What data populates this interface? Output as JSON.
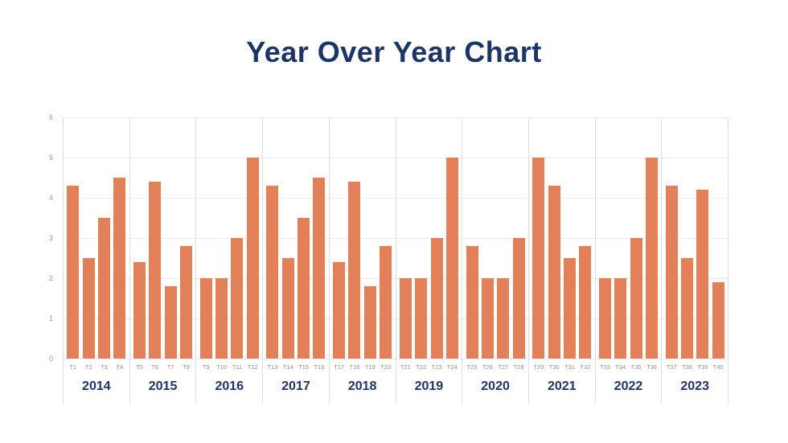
{
  "title": "Year Over Year Chart",
  "colors": {
    "bar": "#e2805a",
    "navy": "#1d3565",
    "gridline": "#ececec",
    "separator": "#e0e0e0",
    "tick_text": "#9a9a9a",
    "bar_label_text": "#8f8f8f",
    "background": "#ffffff"
  },
  "chart_data": {
    "type": "bar",
    "title": "Year Over Year Chart",
    "xlabel": "",
    "ylabel": "",
    "ylim": [
      0,
      6
    ],
    "yticks": [
      0,
      1,
      2,
      3,
      4,
      5,
      6
    ],
    "grid": true,
    "legend": "none",
    "groups": [
      {
        "year": "2014",
        "categories": [
          "T1",
          "T2",
          "T3",
          "T4"
        ],
        "values": [
          4.3,
          2.5,
          3.5,
          4.5
        ]
      },
      {
        "year": "2015",
        "categories": [
          "T5",
          "T6",
          "T7",
          "T8"
        ],
        "values": [
          2.4,
          4.4,
          1.8,
          2.8
        ]
      },
      {
        "year": "2016",
        "categories": [
          "T9",
          "T10",
          "T11",
          "T12"
        ],
        "values": [
          2.0,
          2.0,
          3.0,
          5.0
        ]
      },
      {
        "year": "2017",
        "categories": [
          "T13",
          "T14",
          "T15",
          "T16"
        ],
        "values": [
          4.3,
          2.5,
          3.5,
          4.5
        ]
      },
      {
        "year": "2018",
        "categories": [
          "T17",
          "T18",
          "T19",
          "T20"
        ],
        "values": [
          2.4,
          4.4,
          1.8,
          2.8
        ]
      },
      {
        "year": "2019",
        "categories": [
          "T21",
          "T22",
          "T23",
          "T24"
        ],
        "values": [
          2.0,
          2.0,
          3.0,
          5.0
        ]
      },
      {
        "year": "2020",
        "categories": [
          "T25",
          "T26",
          "T27",
          "T28"
        ],
        "values": [
          2.8,
          2.0,
          2.0,
          3.0
        ]
      },
      {
        "year": "2021",
        "categories": [
          "T29",
          "T30",
          "T31",
          "T32"
        ],
        "values": [
          5.0,
          4.3,
          2.5,
          2.8
        ]
      },
      {
        "year": "2022",
        "categories": [
          "T33",
          "T34",
          "T35",
          "T36"
        ],
        "values": [
          2.0,
          2.0,
          3.0,
          5.0
        ]
      },
      {
        "year": "2023",
        "categories": [
          "T37",
          "T38",
          "T39",
          "T40"
        ],
        "values": [
          4.3,
          2.5,
          4.2,
          1.9
        ]
      }
    ]
  }
}
